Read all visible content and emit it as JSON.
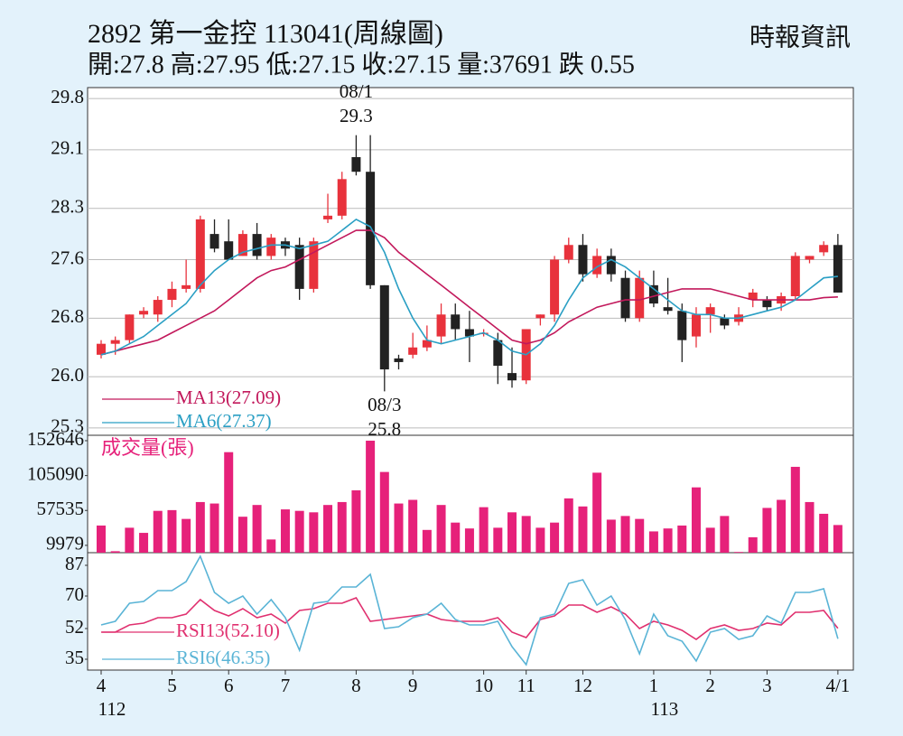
{
  "chart_data": [
    {
      "type": "candlestick",
      "title": "2892  第一金控 113041(周線圖)",
      "subtitle": "開:27.8 高:27.95 低:27.15 收:27.15 量:37691 跌 0.55",
      "source": "時報資訊",
      "up_color": "#e8323c",
      "down_color": "#222222",
      "open": [
        26.3,
        26.45,
        26.5,
        26.85,
        26.85,
        27.05,
        27.2,
        27.2,
        27.95,
        27.85,
        27.65,
        27.95,
        27.65,
        27.85,
        27.8,
        27.2,
        28.15,
        28.2,
        29.0,
        28.8,
        27.25,
        26.25,
        26.3,
        26.4,
        26.55,
        26.85,
        26.65,
        26.6,
        26.5,
        26.05,
        25.95,
        26.8,
        26.85,
        27.6,
        27.8,
        27.4,
        27.65,
        27.35,
        26.8,
        27.25,
        26.95,
        26.9,
        26.55,
        26.85,
        26.8,
        26.75,
        27.05,
        27.05,
        27.0,
        27.1,
        27.6,
        27.7,
        27.8
      ],
      "high": [
        26.5,
        26.55,
        26.85,
        26.95,
        27.1,
        27.3,
        27.6,
        28.2,
        28.15,
        28.15,
        28.0,
        28.1,
        27.95,
        27.9,
        27.9,
        27.9,
        28.5,
        28.8,
        29.3,
        29.3,
        27.25,
        26.3,
        26.6,
        26.7,
        27.0,
        27.0,
        26.9,
        26.65,
        26.6,
        26.4,
        26.65,
        26.85,
        27.65,
        27.9,
        27.95,
        27.75,
        27.75,
        27.45,
        27.45,
        27.45,
        27.35,
        27.0,
        26.95,
        27.0,
        26.85,
        26.95,
        27.2,
        27.1,
        27.15,
        27.7,
        27.65,
        27.85,
        27.95
      ],
      "low": [
        26.25,
        26.3,
        26.45,
        26.8,
        26.75,
        26.95,
        27.15,
        27.15,
        27.7,
        27.6,
        27.65,
        27.6,
        27.6,
        27.65,
        27.05,
        27.15,
        28.1,
        28.15,
        28.75,
        27.2,
        25.8,
        26.1,
        26.25,
        26.35,
        26.45,
        26.5,
        26.2,
        26.55,
        25.9,
        25.85,
        25.9,
        26.7,
        26.75,
        27.55,
        27.3,
        27.35,
        27.3,
        26.75,
        26.75,
        26.95,
        26.85,
        26.2,
        26.4,
        26.6,
        26.65,
        26.7,
        26.95,
        26.9,
        26.9,
        27.05,
        27.55,
        27.65,
        27.15
      ],
      "close": [
        26.45,
        26.5,
        26.85,
        26.9,
        27.05,
        27.2,
        27.25,
        28.15,
        27.75,
        27.6,
        27.95,
        27.65,
        27.9,
        27.75,
        27.2,
        27.85,
        28.2,
        28.7,
        28.8,
        27.25,
        26.1,
        26.2,
        26.4,
        26.5,
        26.85,
        26.65,
        26.55,
        26.6,
        26.15,
        25.95,
        26.65,
        26.85,
        27.6,
        27.8,
        27.4,
        27.65,
        27.4,
        26.8,
        27.35,
        27.0,
        26.9,
        26.5,
        26.85,
        26.95,
        26.7,
        26.85,
        27.15,
        26.95,
        27.1,
        27.65,
        27.65,
        27.8,
        27.15
      ],
      "series": [
        {
          "name": "MA13(27.09)",
          "color": "#c2185b",
          "values": [
            26.3,
            26.35,
            26.4,
            26.45,
            26.5,
            26.6,
            26.7,
            26.8,
            26.9,
            27.05,
            27.2,
            27.35,
            27.45,
            27.5,
            27.6,
            27.7,
            27.8,
            27.9,
            28.0,
            28.0,
            27.9,
            27.7,
            27.55,
            27.4,
            27.25,
            27.1,
            26.95,
            26.8,
            26.65,
            26.5,
            26.45,
            26.5,
            26.6,
            26.75,
            26.85,
            26.95,
            27.0,
            27.05,
            27.05,
            27.1,
            27.15,
            27.2,
            27.2,
            27.2,
            27.15,
            27.1,
            27.05,
            27.05,
            27.05,
            27.05,
            27.05,
            27.08,
            27.09
          ]
        },
        {
          "name": "MA6(27.37)",
          "color": "#2a9fc4",
          "values": [
            26.3,
            26.35,
            26.45,
            26.55,
            26.7,
            26.85,
            27.0,
            27.25,
            27.45,
            27.6,
            27.7,
            27.75,
            27.8,
            27.8,
            27.75,
            27.8,
            27.85,
            28.0,
            28.15,
            28.05,
            27.7,
            27.2,
            26.8,
            26.5,
            26.45,
            26.5,
            26.55,
            26.6,
            26.5,
            26.35,
            26.3,
            26.45,
            26.7,
            27.05,
            27.35,
            27.5,
            27.6,
            27.5,
            27.35,
            27.2,
            27.05,
            26.9,
            26.85,
            26.85,
            26.8,
            26.8,
            26.85,
            26.9,
            26.95,
            27.05,
            27.2,
            27.35,
            27.37
          ]
        }
      ],
      "annotations": [
        {
          "text": "08/1",
          "value": 29.3,
          "at": "high"
        },
        {
          "text": "08/3",
          "value": 25.8,
          "at": "low"
        }
      ],
      "ylim": [
        25.2,
        29.95
      ],
      "yticks": [
        29.8,
        29.1,
        28.3,
        27.6,
        26.8,
        {
          "value": 26,
          "label": "26.0"
        },
        25.3
      ],
      "grid": true
    },
    {
      "type": "bar",
      "title": "成交量(張)",
      "color": "#e6217a",
      "values": [
        37000,
        2000,
        34000,
        27000,
        57000,
        58000,
        46000,
        69000,
        67000,
        137000,
        49000,
        65000,
        18000,
        59000,
        57000,
        55000,
        65000,
        69000,
        85000,
        152646,
        110000,
        67000,
        72000,
        31000,
        65000,
        41000,
        33000,
        62000,
        34000,
        55000,
        50000,
        34000,
        41000,
        74000,
        63000,
        109000,
        45000,
        50000,
        46000,
        29000,
        33000,
        37000,
        89000,
        34000,
        50000,
        1000,
        21000,
        61000,
        72000,
        117000,
        69000,
        53000,
        37691
      ],
      "ylim": [
        0,
        160000
      ],
      "yticks": [
        152646,
        105090,
        57535,
        9979
      ],
      "grid": false
    },
    {
      "type": "line",
      "categories": [
        "4",
        null,
        null,
        null,
        null,
        "5",
        null,
        null,
        null,
        "6",
        null,
        null,
        null,
        "7",
        null,
        null,
        null,
        null,
        "8",
        null,
        null,
        null,
        "9",
        null,
        null,
        null,
        null,
        "10",
        null,
        null,
        "11",
        null,
        null,
        null,
        "12",
        null,
        null,
        null,
        null,
        "1",
        null,
        null,
        null,
        "2",
        null,
        null,
        null,
        "3",
        null,
        null,
        null,
        null,
        "4/1"
      ],
      "year_labels": [
        "112",
        null,
        null,
        null,
        null,
        null,
        null,
        null,
        null,
        null,
        null,
        null,
        null,
        null,
        null,
        null,
        null,
        null,
        null,
        null,
        null,
        null,
        null,
        null,
        null,
        null,
        null,
        null,
        null,
        null,
        null,
        null,
        null,
        null,
        null,
        null,
        null,
        null,
        null,
        "113",
        null,
        null,
        null,
        null,
        null,
        null,
        null,
        null,
        null,
        null,
        null,
        null,
        null
      ],
      "series": [
        {
          "name": "RSI13(52.10)",
          "color": "#e0306f",
          "values": [
            50,
            50,
            54,
            55,
            58,
            58,
            60,
            68,
            62,
            59,
            63,
            58,
            60,
            55,
            62,
            63,
            66,
            66,
            69,
            56,
            57,
            58,
            59,
            60,
            57,
            56,
            56,
            56,
            58,
            50,
            47,
            57,
            59,
            65,
            65,
            61,
            64,
            60,
            52,
            56,
            54,
            51,
            46,
            52,
            54,
            51,
            52,
            55,
            54,
            61,
            61,
            62,
            52.1
          ]
        },
        {
          "name": "RSI6(46.35)",
          "color": "#5ab4d6",
          "values": [
            54,
            56,
            66,
            67,
            73,
            73,
            78,
            92,
            72,
            66,
            70,
            60,
            68,
            58,
            40,
            66,
            67,
            75,
            75,
            82,
            52,
            53,
            58,
            60,
            66,
            57,
            54,
            54,
            56,
            42,
            32,
            58,
            60,
            77,
            79,
            65,
            70,
            57,
            38,
            60,
            48,
            45,
            34,
            50,
            52,
            46,
            48,
            59,
            55,
            72,
            72,
            74,
            46.35
          ]
        }
      ],
      "ylim": [
        29,
        94
      ],
      "yticks": [
        87,
        70,
        52,
        35
      ],
      "grid": false
    }
  ]
}
